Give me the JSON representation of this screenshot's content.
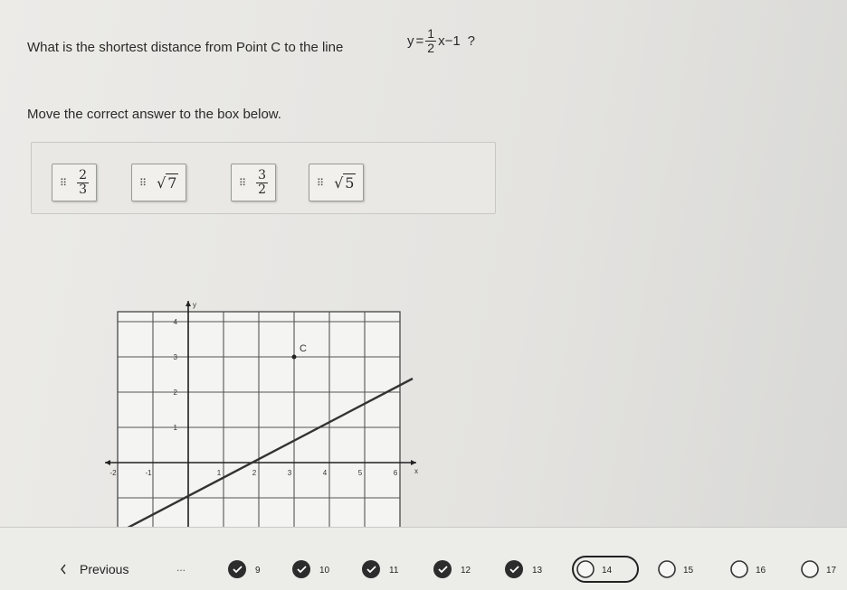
{
  "question": {
    "text": "What is the shortest distance from Point C to the line",
    "equation": {
      "lhs": "y",
      "eq": "=",
      "num": "1",
      "den": "2",
      "rest": "x−1"
    },
    "end": "?"
  },
  "instruction": "Move the correct answer to the box below.",
  "answers": [
    {
      "num": "2",
      "den": "3"
    },
    {
      "radical": "√",
      "radicand": "7"
    },
    {
      "num": "3",
      "den": "2"
    },
    {
      "radical": "√",
      "radicand": "5"
    }
  ],
  "graph": {
    "point_label": "C",
    "axis_labels": {
      "x": "x",
      "y": "y"
    },
    "y_ticks": [
      "4",
      "3",
      "2",
      "1"
    ],
    "x_ticks": [
      "-2",
      "-1",
      "1",
      "2",
      "3",
      "4",
      "5",
      "6"
    ]
  },
  "nav": {
    "previous": "Previous",
    "ellipsis": "...",
    "pages": [
      "9",
      "10",
      "11",
      "12",
      "13",
      "14",
      "15",
      "16",
      "17"
    ]
  }
}
